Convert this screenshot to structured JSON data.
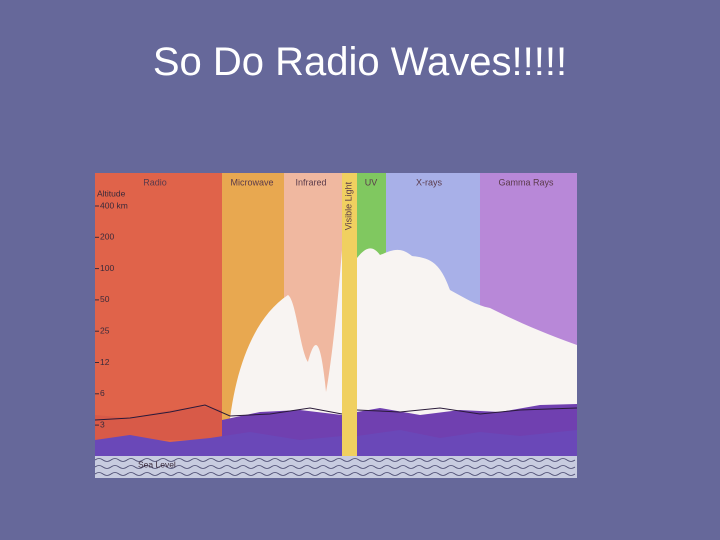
{
  "title": "So Do Radio Waves!!!!!",
  "diagram": {
    "bands": [
      "Radio",
      "Microwave",
      "Infrared",
      "Visible Light",
      "UV",
      "X-rays",
      "Gamma Rays"
    ],
    "altitude_label": "Altitude",
    "altitude_ticks": [
      "400 km",
      "200",
      "100",
      "50",
      "25",
      "12",
      "6",
      "3"
    ],
    "sea_level": "Sea Level"
  }
}
